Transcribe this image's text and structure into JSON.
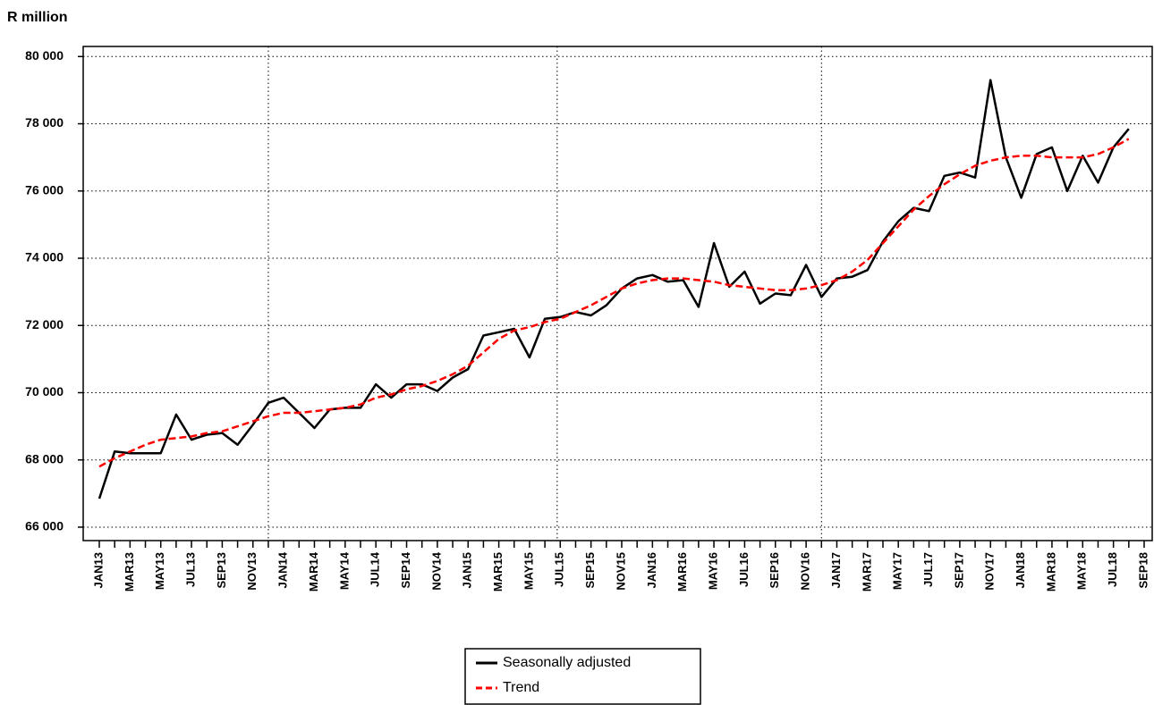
{
  "chart_data": {
    "type": "line",
    "title": "R million",
    "categories": [
      "JAN13",
      null,
      "MAR13",
      null,
      "MAY13",
      null,
      "JUL13",
      null,
      "SEP13",
      null,
      "NOV13",
      null,
      "JAN14",
      null,
      "MAR14",
      null,
      "MAY14",
      null,
      "JUL14",
      null,
      "SEP14",
      null,
      "NOV14",
      null,
      "JAN15",
      null,
      "MAR15",
      null,
      "MAY15",
      null,
      "JUL15",
      null,
      "SEP15",
      null,
      "NOV15",
      null,
      "JAN16",
      null,
      "MAR16",
      null,
      "MAY16",
      null,
      "JUL16",
      null,
      "SEP16",
      null,
      "NOV16",
      null,
      "JAN17",
      null,
      "MAR17",
      null,
      "MAY17",
      null,
      "JUL17",
      null,
      "SEP17",
      null,
      "NOV17",
      null,
      "JAN18",
      null,
      "MAR18",
      null,
      "MAY18",
      null,
      "JUL18",
      null,
      "SEP18"
    ],
    "series": [
      {
        "name": "Seasonally adjusted",
        "color": "#000000",
        "dash": "solid",
        "values": [
          66850,
          68250,
          68200,
          68200,
          68200,
          69350,
          68600,
          68750,
          68800,
          68450,
          69050,
          69700,
          69850,
          69400,
          68950,
          69500,
          69550,
          69550,
          70250,
          69850,
          70250,
          70250,
          70050,
          70450,
          70700,
          71700,
          71800,
          71900,
          71050,
          72200,
          72250,
          72400,
          72300,
          72600,
          73100,
          73400,
          73500,
          73300,
          73350,
          72550,
          74450,
          73150,
          73600,
          72650,
          72950,
          72900,
          73800,
          72850,
          73400,
          73450,
          73650,
          74500,
          75100,
          75500,
          75400,
          76450,
          76550,
          76400,
          79300,
          77000,
          75800,
          77100,
          77300,
          76000,
          77050,
          76250,
          77300,
          77850,
          null
        ]
      },
      {
        "name": "Trend",
        "color": "#ff0000",
        "dash": "dashed",
        "values": [
          67800,
          68050,
          68250,
          68450,
          68600,
          68650,
          68700,
          68800,
          68850,
          69000,
          69150,
          69300,
          69400,
          69400,
          69450,
          69500,
          69550,
          69650,
          69850,
          69950,
          70100,
          70200,
          70350,
          70550,
          70800,
          71200,
          71600,
          71850,
          71950,
          72100,
          72200,
          72400,
          72600,
          72850,
          73100,
          73250,
          73350,
          73400,
          73400,
          73350,
          73300,
          73200,
          73150,
          73100,
          73050,
          73050,
          73100,
          73200,
          73350,
          73600,
          73950,
          74450,
          74950,
          75450,
          75850,
          76200,
          76500,
          76750,
          76900,
          77000,
          77050,
          77050,
          77000,
          77000,
          77000,
          77100,
          77300,
          77550,
          null
        ]
      }
    ],
    "ylim": [
      65600,
      80300
    ],
    "yticks": [
      {
        "value": 66000,
        "label": "66 000"
      },
      {
        "value": 68000,
        "label": "68 000"
      },
      {
        "value": 70000,
        "label": "70 000"
      },
      {
        "value": 72000,
        "label": "72 000"
      },
      {
        "value": 74000,
        "label": "74 000"
      },
      {
        "value": 76000,
        "label": "76 000"
      },
      {
        "value": 78000,
        "label": "78 000"
      },
      {
        "value": 80000,
        "label": "80 000"
      }
    ],
    "grid": true,
    "legend": "bottom"
  }
}
